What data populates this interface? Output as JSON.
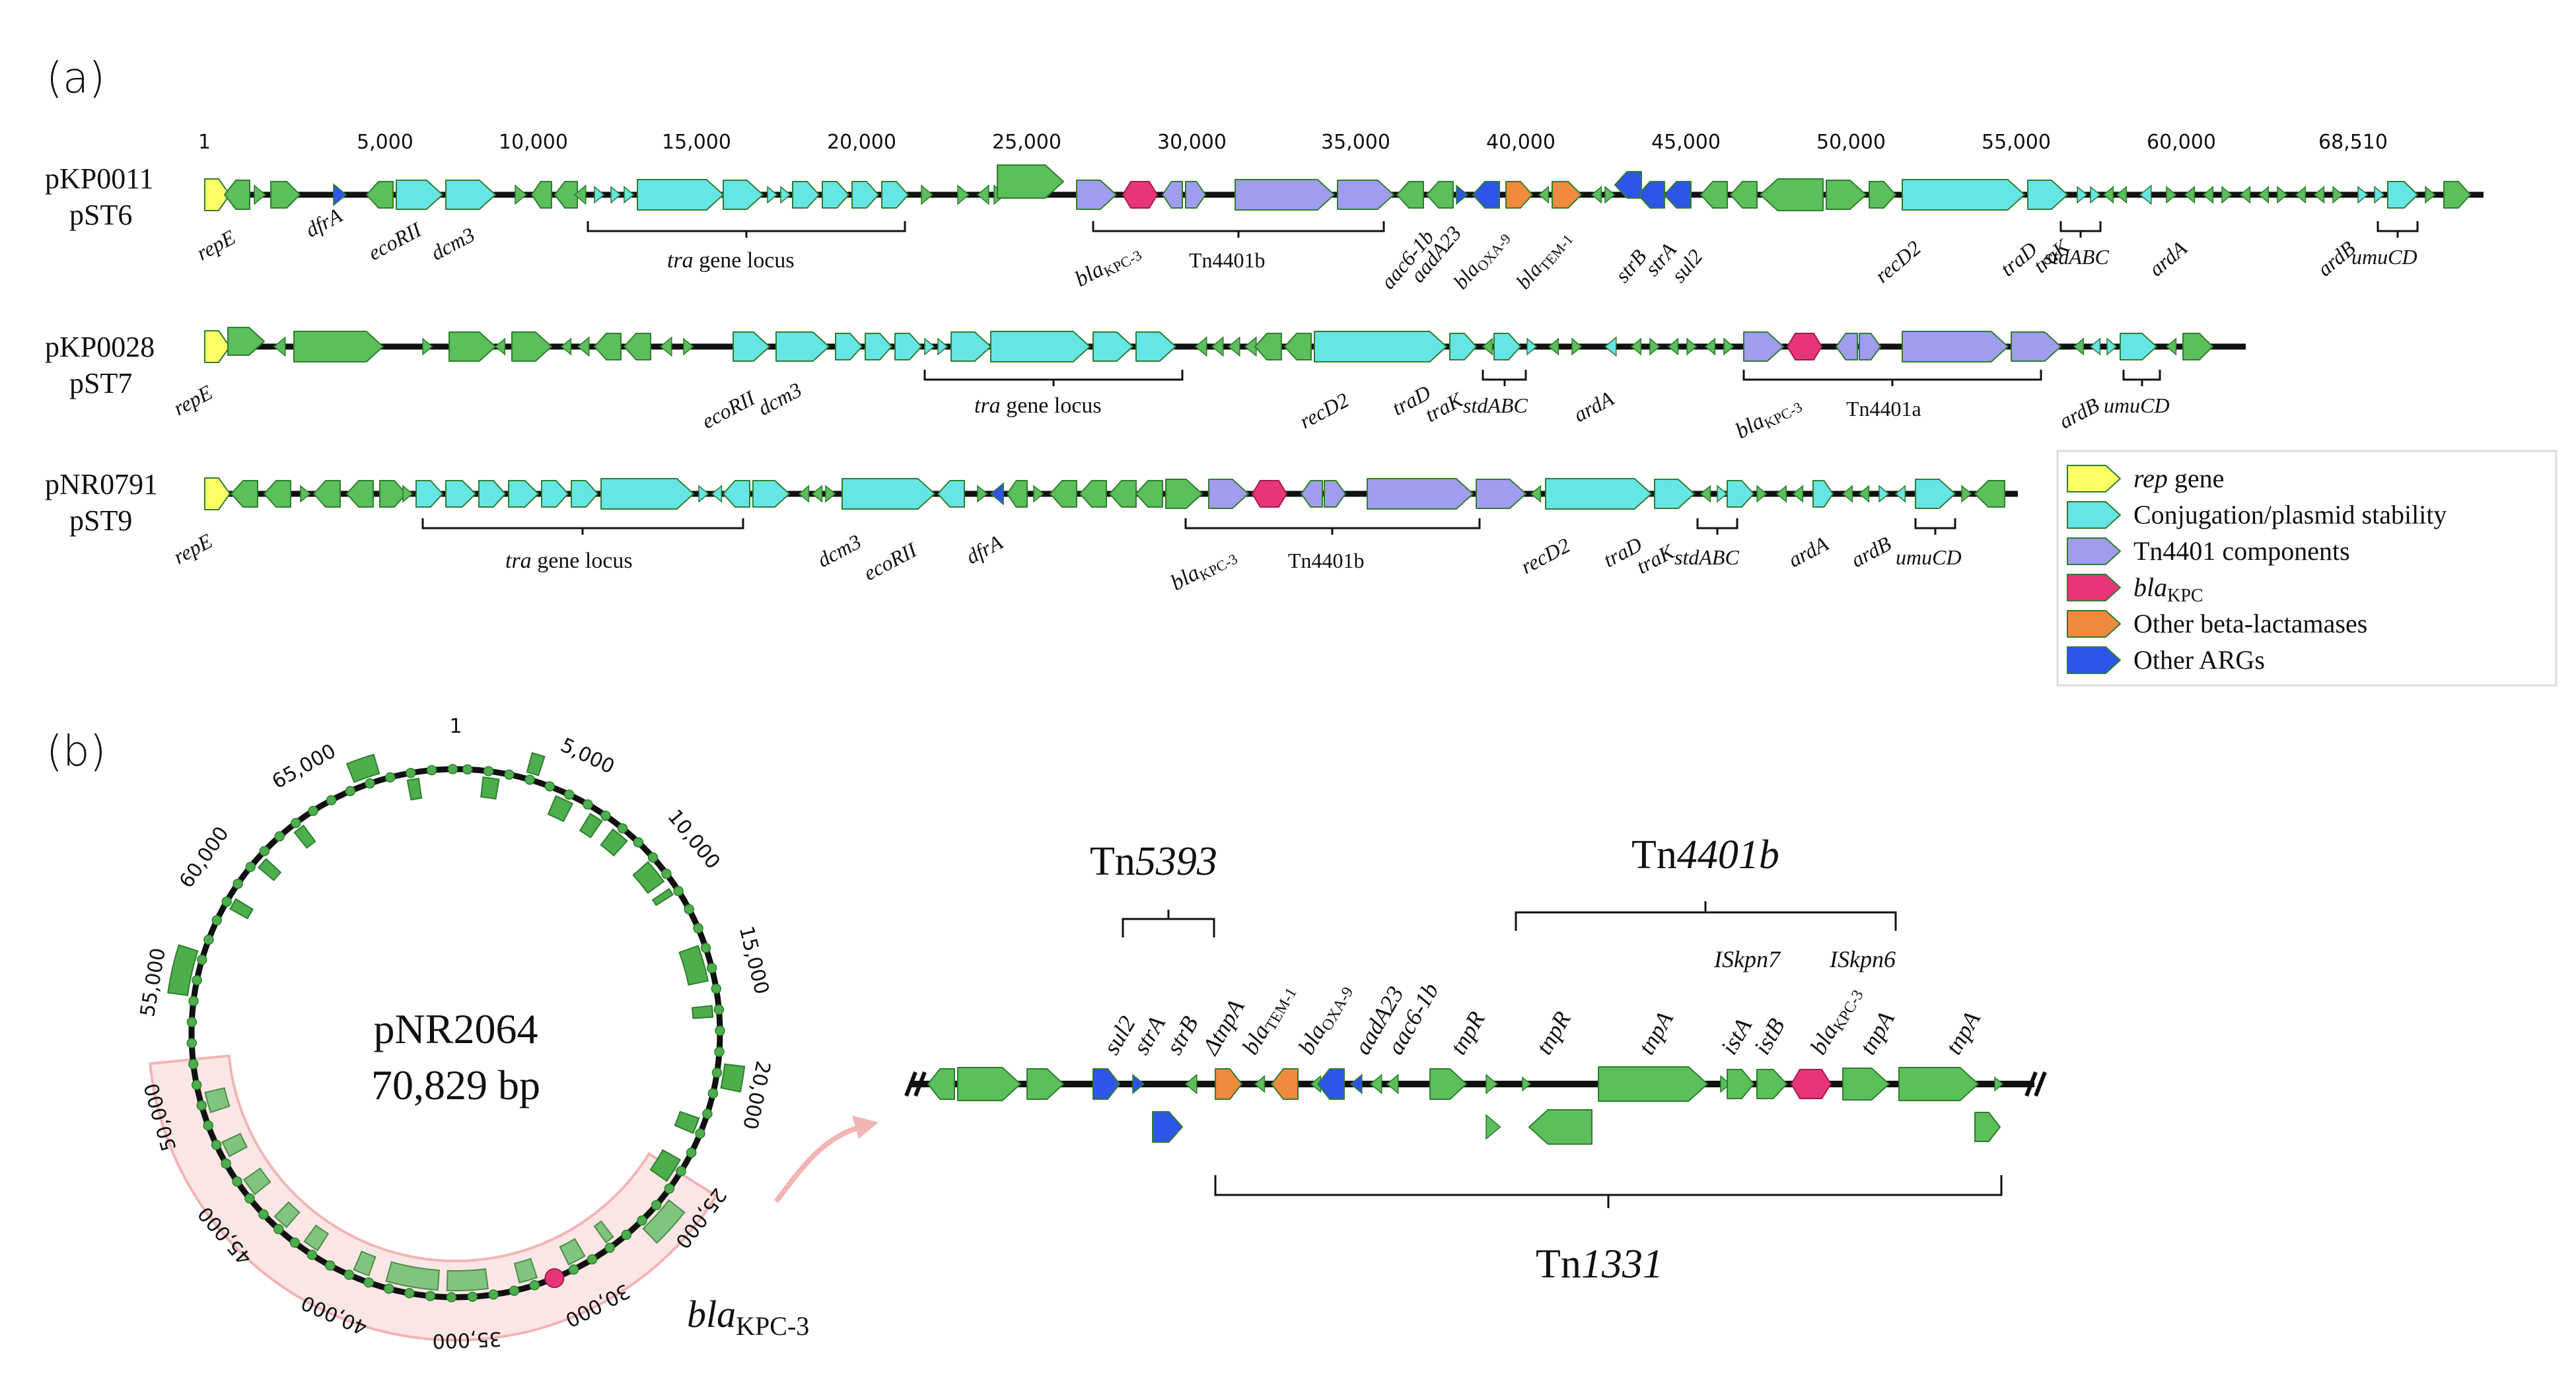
{
  "panel_a": {
    "label": "(a)",
    "scale_ticks": [
      "1",
      "5,000",
      "10,000",
      "15,000",
      "20,000",
      "25,000",
      "30,000",
      "35,000",
      "40,000",
      "45,000",
      "50,000",
      "55,000",
      "60,000",
      "68,510"
    ],
    "tracks": [
      {
        "name": "pKP0011",
        "st": "pST6",
        "gene_labels": [
          "repE",
          "dfrA",
          "ecoRII",
          "dcm3",
          "Tn4401b",
          "aac6-1b",
          "aadA23",
          "strB",
          "strA",
          "sul2",
          "recD2",
          "traD",
          "traK",
          "stdABC",
          "ardA",
          "ardB",
          "umuCD"
        ],
        "locus_label": "gene locus",
        "locus_prefix": "tra",
        "bla_kpc": "bla",
        "bla_kpc_sub": "KPC-3",
        "bla_oxa": "bla",
        "bla_oxa_sub": "OXA-9",
        "bla_tem": "bla",
        "bla_tem_sub": "TEM-1"
      },
      {
        "name": "pKP0028",
        "st": "pST7",
        "gene_labels": [
          "repE",
          "ecoRII",
          "dcm3",
          "recD2",
          "traD",
          "traK",
          "stdABC",
          "ardA",
          "Tn4401a",
          "ardB",
          "umuCD"
        ],
        "locus_label": "gene locus",
        "locus_prefix": "tra",
        "bla_kpc": "bla",
        "bla_kpc_sub": "KPC-3"
      },
      {
        "name": "pNR0791",
        "st": "pST9",
        "gene_labels": [
          "repE",
          "dcm3",
          "ecoRII",
          "dfrA",
          "Tn4401b",
          "recD2",
          "traD",
          "traK",
          "stdABC",
          "ardA",
          "ardB",
          "umuCD"
        ],
        "locus_label": "gene locus",
        "locus_prefix": "tra",
        "bla_kpc": "bla",
        "bla_kpc_sub": "KPC-3"
      }
    ]
  },
  "legend": {
    "items": [
      {
        "label_italic": "rep",
        "label": " gene",
        "color": "#ffff66"
      },
      {
        "label_italic": "",
        "label": "Conjugation/plasmid stability",
        "color": "#66e5e5"
      },
      {
        "label_italic": "",
        "label": "Tn4401 components",
        "color": "#a09cf0"
      },
      {
        "label_italic": "bla",
        "label": "KPC",
        "color": "#e8357a"
      },
      {
        "label_italic": "",
        "label": "Other beta-lactamases",
        "color": "#f08a3c"
      },
      {
        "label_italic": "",
        "label": "Other ARGs",
        "color": "#2f55e8"
      }
    ]
  },
  "panel_b": {
    "label": "(b)",
    "plasmid_name": "pNR2064",
    "plasmid_size": "70,829 bp",
    "circle_ticks": [
      "1",
      "5,000",
      "10,000",
      "15,000",
      "20,000",
      "25,000",
      "30,000",
      "35,000",
      "40,000",
      "45,000",
      "50,000",
      "55,000",
      "60,000",
      "65,000"
    ],
    "circle_kpc": "bla",
    "circle_kpc_sub": "KPC-3",
    "transposons": {
      "tn5393_prefix": "Tn",
      "tn5393_num": "5393",
      "tn4401b_prefix": "Tn",
      "tn4401b_num": "4401b",
      "tn1331_prefix": "Tn",
      "tn1331_num": "1331"
    },
    "detail_labels": [
      "sul2",
      "strA",
      "strB",
      "ΔtnpA",
      "aadA23",
      "aac6-1b",
      "tnpR",
      "tnpR",
      "tnpA",
      "istA",
      "istB",
      "tnpA",
      "tnpA",
      "ISkpn7",
      "ISkpn6"
    ],
    "detail_bla": [
      {
        "main": "bla",
        "sub": "TEM-1"
      },
      {
        "main": "bla",
        "sub": "OXA-9"
      },
      {
        "main": "bla",
        "sub": "KPC-3"
      }
    ]
  },
  "colors": {
    "green": "#5bbf5b",
    "cyan": "#66e5e5",
    "purple": "#a09cf0",
    "pink": "#e8357a",
    "orange": "#f08a3c",
    "blue": "#2f55e8",
    "yellow": "#ffff66",
    "highlight": "#f7c6c6"
  }
}
